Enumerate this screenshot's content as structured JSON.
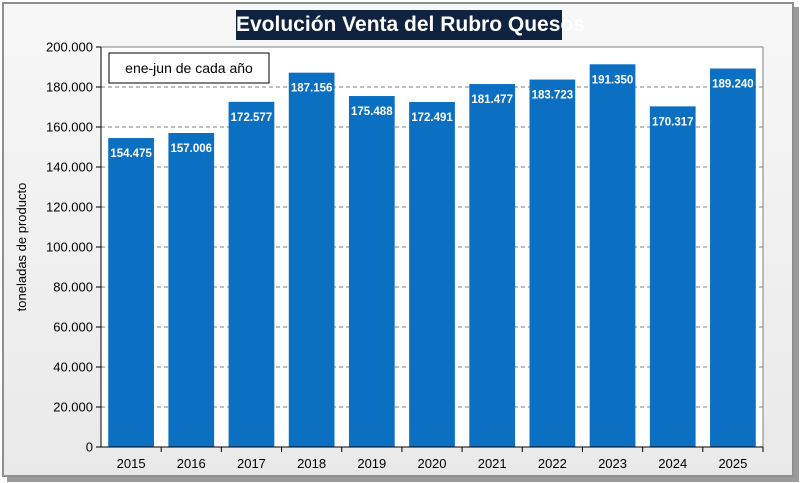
{
  "chart_data": {
    "type": "bar",
    "title": "Evolución Venta del Rubro Quesos",
    "annotation": "ene-jun de cada año",
    "xlabel": "",
    "ylabel": "toneladas de producto",
    "ylim": [
      0,
      200000
    ],
    "y_ticks": [
      "0",
      "20.000",
      "40.000",
      "60.000",
      "80.000",
      "100.000",
      "120.000",
      "140.000",
      "160.000",
      "180.000",
      "200.000"
    ],
    "grid": "horizontal dashed",
    "categories": [
      "2015",
      "2016",
      "2017",
      "2018",
      "2019",
      "2020",
      "2021",
      "2022",
      "2023",
      "2024",
      "2025"
    ],
    "values": [
      154475,
      157006,
      172577,
      187156,
      175488,
      172491,
      181477,
      183723,
      191350,
      170317,
      189240
    ],
    "data_labels": [
      "154.475",
      "157.006",
      "172.577",
      "187.156",
      "175.488",
      "172.491",
      "181.477",
      "183.723",
      "191.350",
      "170.317",
      "189.240"
    ],
    "bar_color": "#0b6fc2",
    "title_bg": "#0f2340"
  }
}
